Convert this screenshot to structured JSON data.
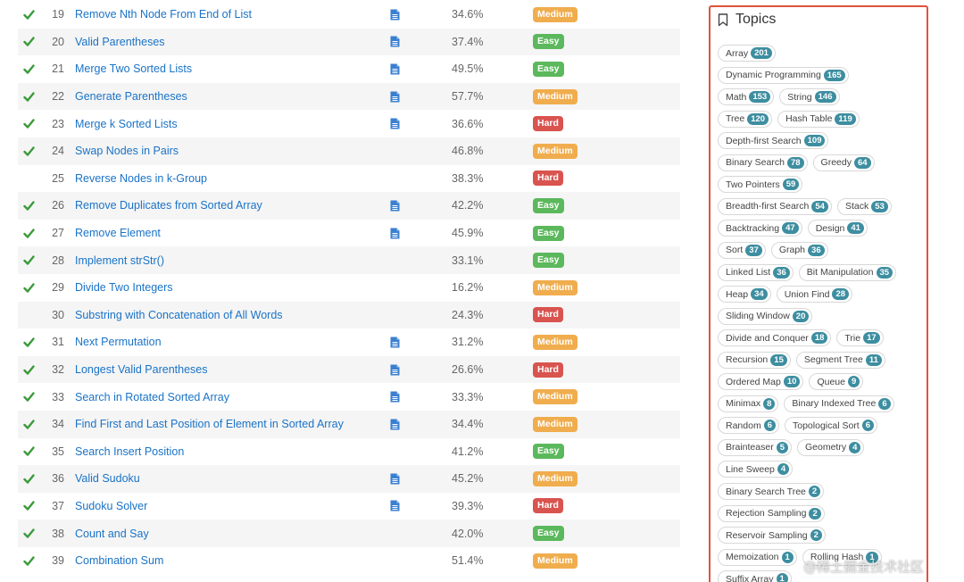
{
  "problems": [
    {
      "solved": true,
      "num": "19",
      "title": "Remove Nth Node From End of List",
      "doc": true,
      "rate": "34.6%",
      "difficulty": "Medium"
    },
    {
      "solved": true,
      "num": "20",
      "title": "Valid Parentheses",
      "doc": true,
      "rate": "37.4%",
      "difficulty": "Easy"
    },
    {
      "solved": true,
      "num": "21",
      "title": "Merge Two Sorted Lists",
      "doc": true,
      "rate": "49.5%",
      "difficulty": "Easy"
    },
    {
      "solved": true,
      "num": "22",
      "title": "Generate Parentheses",
      "doc": true,
      "rate": "57.7%",
      "difficulty": "Medium"
    },
    {
      "solved": true,
      "num": "23",
      "title": "Merge k Sorted Lists",
      "doc": true,
      "rate": "36.6%",
      "difficulty": "Hard"
    },
    {
      "solved": true,
      "num": "24",
      "title": "Swap Nodes in Pairs",
      "doc": false,
      "rate": "46.8%",
      "difficulty": "Medium"
    },
    {
      "solved": false,
      "num": "25",
      "title": "Reverse Nodes in k-Group",
      "doc": false,
      "rate": "38.3%",
      "difficulty": "Hard"
    },
    {
      "solved": true,
      "num": "26",
      "title": "Remove Duplicates from Sorted Array",
      "doc": true,
      "rate": "42.2%",
      "difficulty": "Easy"
    },
    {
      "solved": true,
      "num": "27",
      "title": "Remove Element",
      "doc": true,
      "rate": "45.9%",
      "difficulty": "Easy"
    },
    {
      "solved": true,
      "num": "28",
      "title": "Implement strStr()",
      "doc": false,
      "rate": "33.1%",
      "difficulty": "Easy"
    },
    {
      "solved": true,
      "num": "29",
      "title": "Divide Two Integers",
      "doc": false,
      "rate": "16.2%",
      "difficulty": "Medium"
    },
    {
      "solved": false,
      "num": "30",
      "title": "Substring with Concatenation of All Words",
      "doc": false,
      "rate": "24.3%",
      "difficulty": "Hard"
    },
    {
      "solved": true,
      "num": "31",
      "title": "Next Permutation",
      "doc": true,
      "rate": "31.2%",
      "difficulty": "Medium"
    },
    {
      "solved": true,
      "num": "32",
      "title": "Longest Valid Parentheses",
      "doc": true,
      "rate": "26.6%",
      "difficulty": "Hard"
    },
    {
      "solved": true,
      "num": "33",
      "title": "Search in Rotated Sorted Array",
      "doc": true,
      "rate": "33.3%",
      "difficulty": "Medium"
    },
    {
      "solved": true,
      "num": "34",
      "title": "Find First and Last Position of Element in Sorted Array",
      "doc": true,
      "rate": "34.4%",
      "difficulty": "Medium"
    },
    {
      "solved": true,
      "num": "35",
      "title": "Search Insert Position",
      "doc": false,
      "rate": "41.2%",
      "difficulty": "Easy"
    },
    {
      "solved": true,
      "num": "36",
      "title": "Valid Sudoku",
      "doc": true,
      "rate": "45.2%",
      "difficulty": "Medium"
    },
    {
      "solved": true,
      "num": "37",
      "title": "Sudoku Solver",
      "doc": true,
      "rate": "39.3%",
      "difficulty": "Hard"
    },
    {
      "solved": true,
      "num": "38",
      "title": "Count and Say",
      "doc": false,
      "rate": "42.0%",
      "difficulty": "Easy"
    },
    {
      "solved": true,
      "num": "39",
      "title": "Combination Sum",
      "doc": false,
      "rate": "51.4%",
      "difficulty": "Medium"
    }
  ],
  "topics": {
    "title": "Topics",
    "rows": [
      [
        {
          "name": "Array",
          "count": "201"
        }
      ],
      [
        {
          "name": "Dynamic Programming",
          "count": "165"
        }
      ],
      [
        {
          "name": "Math",
          "count": "153"
        },
        {
          "name": "String",
          "count": "146"
        }
      ],
      [
        {
          "name": "Tree",
          "count": "120"
        },
        {
          "name": "Hash Table",
          "count": "119"
        }
      ],
      [
        {
          "name": "Depth-first Search",
          "count": "109"
        }
      ],
      [
        {
          "name": "Binary Search",
          "count": "78"
        },
        {
          "name": "Greedy",
          "count": "64"
        }
      ],
      [
        {
          "name": "Two Pointers",
          "count": "59"
        }
      ],
      [
        {
          "name": "Breadth-first Search",
          "count": "54"
        },
        {
          "name": "Stack",
          "count": "53"
        }
      ],
      [
        {
          "name": "Backtracking",
          "count": "47"
        },
        {
          "name": "Design",
          "count": "41"
        }
      ],
      [
        {
          "name": "Sort",
          "count": "37"
        },
        {
          "name": "Graph",
          "count": "36"
        }
      ],
      [
        {
          "name": "Linked List",
          "count": "36"
        },
        {
          "name": "Bit Manipulation",
          "count": "35"
        }
      ],
      [
        {
          "name": "Heap",
          "count": "34"
        },
        {
          "name": "Union Find",
          "count": "28"
        }
      ],
      [
        {
          "name": "Sliding Window",
          "count": "20"
        }
      ],
      [
        {
          "name": "Divide and Conquer",
          "count": "18"
        },
        {
          "name": "Trie",
          "count": "17"
        }
      ],
      [
        {
          "name": "Recursion",
          "count": "15"
        },
        {
          "name": "Segment Tree",
          "count": "11"
        }
      ],
      [
        {
          "name": "Ordered Map",
          "count": "10"
        },
        {
          "name": "Queue",
          "count": "9"
        }
      ],
      [
        {
          "name": "Minimax",
          "count": "8"
        },
        {
          "name": "Binary Indexed Tree",
          "count": "6"
        }
      ],
      [
        {
          "name": "Random",
          "count": "6"
        },
        {
          "name": "Topological Sort",
          "count": "6"
        }
      ],
      [
        {
          "name": "Brainteaser",
          "count": "5"
        },
        {
          "name": "Geometry",
          "count": "4"
        }
      ],
      [
        {
          "name": "Line Sweep",
          "count": "4"
        }
      ],
      [
        {
          "name": "Binary Search Tree",
          "count": "2"
        }
      ],
      [
        {
          "name": "Rejection Sampling",
          "count": "2"
        }
      ],
      [
        {
          "name": "Reservoir Sampling",
          "count": "2"
        }
      ],
      [
        {
          "name": "Memoization",
          "count": "1"
        },
        {
          "name": "Rolling Hash",
          "count": "1"
        }
      ],
      [
        {
          "name": "Suffix Array",
          "count": "1"
        }
      ]
    ]
  },
  "watermark": "@稀土掘金技术社区",
  "colors": {
    "easy": "#5cb85c",
    "medium": "#f0ad4e",
    "hard": "#d9534f",
    "link": "#1a73c7",
    "check": "#3a9a3a",
    "doc_icon": "#3a7fd0",
    "topic_count": "#3d8ea0",
    "panel_border": "#e0533b"
  }
}
